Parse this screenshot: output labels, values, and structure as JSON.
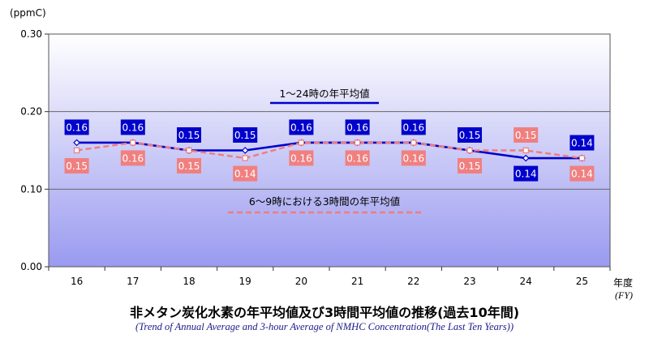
{
  "chart_data": {
    "type": "line",
    "title": "非メタン炭化水素の年平均値及び3時間平均値の推移(過去10年間)",
    "subtitle": "(Trend of Annual Average and 3-hour Average of NMHC Concentration(The Last Ten Years))",
    "ylabel": "(ppmC)",
    "xlabel_ja": "年度",
    "xlabel_en": "(FY)",
    "categories": [
      "16",
      "17",
      "18",
      "19",
      "20",
      "21",
      "22",
      "23",
      "24",
      "25"
    ],
    "ylim": [
      0,
      0.3
    ],
    "yticks": [
      "0.00",
      "0.10",
      "0.20",
      "0.30"
    ],
    "grid": true,
    "series": [
      {
        "name": "1～24時の年平均値",
        "values": [
          0.16,
          0.16,
          0.15,
          0.15,
          0.16,
          0.16,
          0.16,
          0.15,
          0.14,
          0.14
        ],
        "labels": [
          "0.16",
          "0.16",
          "0.15",
          "0.15",
          "0.16",
          "0.16",
          "0.16",
          "0.15",
          "0.14",
          "0.14"
        ],
        "label_pos": [
          "above",
          "above",
          "above",
          "above",
          "above",
          "above",
          "above",
          "above",
          "below",
          "above"
        ],
        "color": "#0000cc",
        "style": "solid"
      },
      {
        "name": "6～9時における3時間の年平均値",
        "values": [
          0.15,
          0.16,
          0.15,
          0.14,
          0.16,
          0.16,
          0.16,
          0.15,
          0.15,
          0.14
        ],
        "labels": [
          "0.15",
          "0.16",
          "0.15",
          "0.14",
          "0.16",
          "0.16",
          "0.16",
          "0.15",
          "0.15",
          "0.14"
        ],
        "label_pos": [
          "below",
          "below",
          "below",
          "below",
          "below",
          "below",
          "below",
          "below",
          "above",
          "below"
        ],
        "color": "#f07c7c",
        "style": "dashed"
      }
    ]
  }
}
